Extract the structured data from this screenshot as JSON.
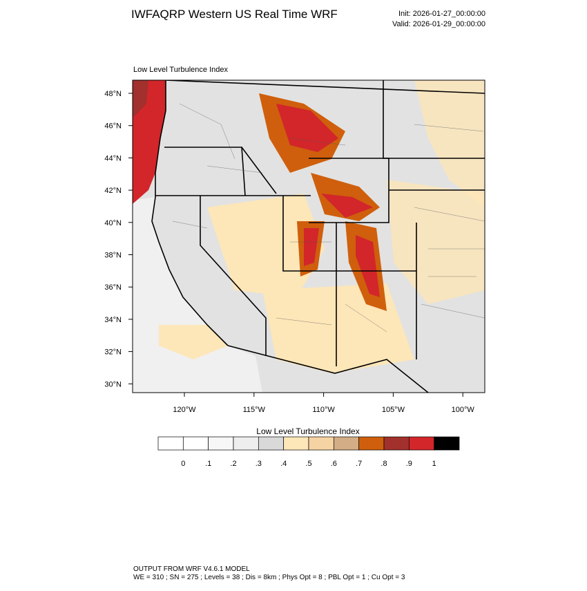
{
  "header": {
    "title": "IWFAQRP Western US Real Time WRF",
    "init": "Init: 2026-01-27_00:00:00",
    "valid": "Valid: 2026-01-29_00:00:00"
  },
  "map": {
    "subtitle": "Low Level Turbulence Index",
    "lat_labels": [
      "48°N",
      "46°N",
      "44°N",
      "42°N",
      "40°N",
      "38°N",
      "36°N",
      "34°N",
      "32°N",
      "30°N"
    ],
    "lon_labels": [
      "120°W",
      "115°W",
      "110°W",
      "105°W",
      "100°W"
    ]
  },
  "colorbar": {
    "title": "Low Level Turbulence Index",
    "colors": [
      "#ffffff",
      "#f7f7f7",
      "#eeeeee",
      "#d9d9d9",
      "#fde6b8",
      "#f6d3a2",
      "#d2ad86",
      "#cf5f0c",
      "#a2302c",
      "#d2262a",
      "#000000"
    ],
    "first_color": "#ffffff",
    "labels": [
      "0",
      ".1",
      ".2",
      ".3",
      ".4",
      ".5",
      ".6",
      ".7",
      ".8",
      ".9",
      "1"
    ]
  },
  "footer": {
    "line1": "OUTPUT FROM WRF V4.6.1 MODEL",
    "line2": "WE = 310 ; SN = 275 ; Levels = 38 ; Dis = 8km ; Phys Opt = 8 ; PBL Opt = 1 ; Cu Opt = 3"
  }
}
